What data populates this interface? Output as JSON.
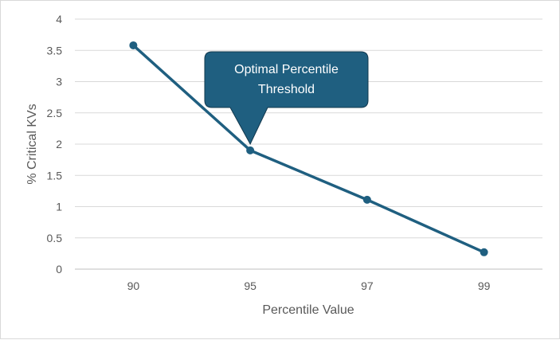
{
  "chart_data": {
    "type": "line",
    "categories": [
      "90",
      "95",
      "97",
      "99"
    ],
    "series": [
      {
        "values": [
          3.58,
          1.9,
          1.11,
          0.27
        ]
      }
    ],
    "title": "",
    "xlabel": "Percentile Value",
    "ylabel": "% Critical KVs",
    "ylim": [
      0,
      4
    ],
    "yticks": [
      "0",
      "0.5",
      "1",
      "1.5",
      "2",
      "2.5",
      "3",
      "3.5",
      "4"
    ],
    "grid": true,
    "legend": "none",
    "line_color": "#1f5f80",
    "annotations": [
      {
        "text_lines": [
          "Optimal Percentile",
          "Threshold"
        ],
        "points_to_category": "95",
        "fill": "#1f5f80"
      }
    ]
  }
}
